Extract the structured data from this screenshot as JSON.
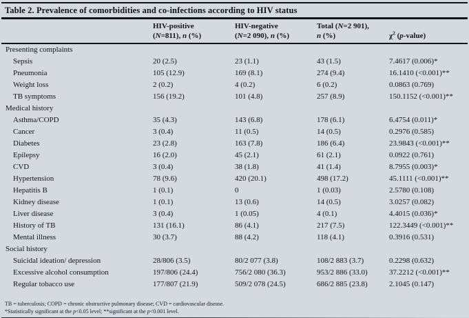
{
  "title": "Table 2. Prevalence of comorbidities and co-infections according to HIV status",
  "header": {
    "row_label_column": "",
    "columns": [
      {
        "name": "hiv-positive",
        "line1": [
          {
            "t": "HIV-positive"
          }
        ],
        "line2": [
          {
            "t": "("
          },
          {
            "t": "N",
            "i": true
          },
          {
            "t": "=811), "
          },
          {
            "t": "n",
            "i": true
          },
          {
            "t": " (%)"
          }
        ]
      },
      {
        "name": "hiv-negative",
        "line1": [
          {
            "t": "HIV-negative"
          }
        ],
        "line2": [
          {
            "t": "("
          },
          {
            "t": "N",
            "i": true
          },
          {
            "t": "=2 090), "
          },
          {
            "t": "n",
            "i": true
          },
          {
            "t": " (%)"
          }
        ]
      },
      {
        "name": "total",
        "line1": [
          {
            "t": "Total ("
          },
          {
            "t": "N",
            "i": true
          },
          {
            "t": "=2 901),"
          }
        ],
        "line2": [
          {
            "t": "n",
            "i": true
          },
          {
            "t": " (%)"
          }
        ]
      },
      {
        "name": "chi-square",
        "line1": [],
        "line2": [
          {
            "t": "χ"
          },
          {
            "t": "2",
            "sup": true
          },
          {
            "t": " ("
          },
          {
            "t": "p",
            "i": true
          },
          {
            "t": "-value)"
          }
        ]
      }
    ]
  },
  "rows": [
    {
      "type": "section",
      "label": "Presenting complaints"
    },
    {
      "type": "item",
      "label": "Sepsis",
      "hiv_positive": "20 (2.5)",
      "hiv_negative": "23 (1.1)",
      "total": "43 (1.5)",
      "chi_square": "7.4617 (0.006)*"
    },
    {
      "type": "item",
      "label": "Pneumonia",
      "hiv_positive": "105 (12.9)",
      "hiv_negative": "169 (8.1)",
      "total": "274 (9.4)",
      "chi_square": "16.1410 (<0.001)**"
    },
    {
      "type": "item",
      "label": "Weight loss",
      "hiv_positive": "2 (0.2)",
      "hiv_negative": "4 (0.2)",
      "total": "6 (0.2)",
      "chi_square": "0.0863 (0.769)"
    },
    {
      "type": "item",
      "label": "TB symptoms",
      "hiv_positive": "156 (19.2)",
      "hiv_negative": "101 (4.8)",
      "total": "257 (8.9)",
      "chi_square": "150.1152 (<0.001)**"
    },
    {
      "type": "section",
      "label": "Medical history"
    },
    {
      "type": "item",
      "label": "Asthma/COPD",
      "hiv_positive": "35 (4.3)",
      "hiv_negative": "143 (6.8)",
      "total": "178 (6.1)",
      "chi_square": "6.4754 (0.011)*"
    },
    {
      "type": "item",
      "label": "Cancer",
      "hiv_positive": "3 (0.4)",
      "hiv_negative": "11 (0.5)",
      "total": "14 (0.5)",
      "chi_square": "0.2976 (0.585)"
    },
    {
      "type": "item",
      "label": "Diabetes",
      "hiv_positive": "23 (2.8)",
      "hiv_negative": "163 (7.8)",
      "total": "186 (6.4)",
      "chi_square": "23.9843 (<0.001)**"
    },
    {
      "type": "item",
      "label": "Epilepsy",
      "hiv_positive": "16 (2.0)",
      "hiv_negative": "45 (2.1)",
      "total": "61 (2.1)",
      "chi_square": "0.0922 (0.761)"
    },
    {
      "type": "item",
      "label": "CVD",
      "hiv_positive": "3 (0.4)",
      "hiv_negative": "38 (1.8)",
      "total": "41 (1.4)",
      "chi_square": "8.7955 (0.003)*"
    },
    {
      "type": "item",
      "label": "Hypertension",
      "hiv_positive": "78 (9.6)",
      "hiv_negative": "420 (20.1)",
      "total": "498 (17.2)",
      "chi_square": "45.1111 (<0.001)**"
    },
    {
      "type": "item",
      "label": "Hepatitis B",
      "hiv_positive": "1 (0.1)",
      "hiv_negative": "0",
      "total": "1 (0.03)",
      "chi_square": "2.5780 (0.108)"
    },
    {
      "type": "item",
      "label": "Kidney disease",
      "hiv_positive": "1 (0.1)",
      "hiv_negative": "13 (0.6)",
      "total": "14 (0.5)",
      "chi_square": "3.0257 (0.082)"
    },
    {
      "type": "item",
      "label": "Liver disease",
      "hiv_positive": "3 (0.4)",
      "hiv_negative": "1 (0.05)",
      "total": "4 (0.1)",
      "chi_square": "4.4015 (0.036)*"
    },
    {
      "type": "item",
      "label": "History of TB",
      "hiv_positive": "131 (16.1)",
      "hiv_negative": "86 (4.1)",
      "total": "217 (7.5)",
      "chi_square": "122.3449 (<0.001)**"
    },
    {
      "type": "item",
      "label": "Mental illness",
      "hiv_positive": "30 (3.7)",
      "hiv_negative": "88 (4.2)",
      "total": "118 (4.1)",
      "chi_square": "0.3916 (0.531)"
    },
    {
      "type": "section",
      "label": "Social history"
    },
    {
      "type": "item",
      "label": "Suicidal ideation/ depression",
      "hiv_positive": "28/806 (3.5)",
      "hiv_negative": "80/2 077 (3.8)",
      "total": "108/2 883 (3.7)",
      "chi_square": "0.2298 (0.632)"
    },
    {
      "type": "item",
      "label": "Excessive alcohol consumption",
      "hiv_positive": "197/806 (24.4)",
      "hiv_negative": "756/2 080 (36.3)",
      "total": "953/2 886 (33.0)",
      "chi_square": "37.2212 (<0.001)**"
    },
    {
      "type": "item",
      "label": "Regular tobacco use",
      "hiv_positive": "177/807 (21.9)",
      "hiv_negative": "509/2 078 (24.5)",
      "total": "686/2 885 (23.8)",
      "chi_square": "2.1045 (0.147)"
    }
  ],
  "footnotes": {
    "abbreviations": "TB = tuberculosis; COPD = chronic obstructive pulmonary disease; CVD = cardiovascular disease.",
    "significance": [
      {
        "t": "*Statistically significant at the "
      },
      {
        "t": "p",
        "i": true
      },
      {
        "t": "<0.05 level; **significant at the "
      },
      {
        "t": "p",
        "i": true
      },
      {
        "t": "<0.001 level."
      }
    ]
  },
  "colors": {
    "background": "#d5d9e0",
    "text": "#14141c",
    "rule": "#11131a"
  }
}
